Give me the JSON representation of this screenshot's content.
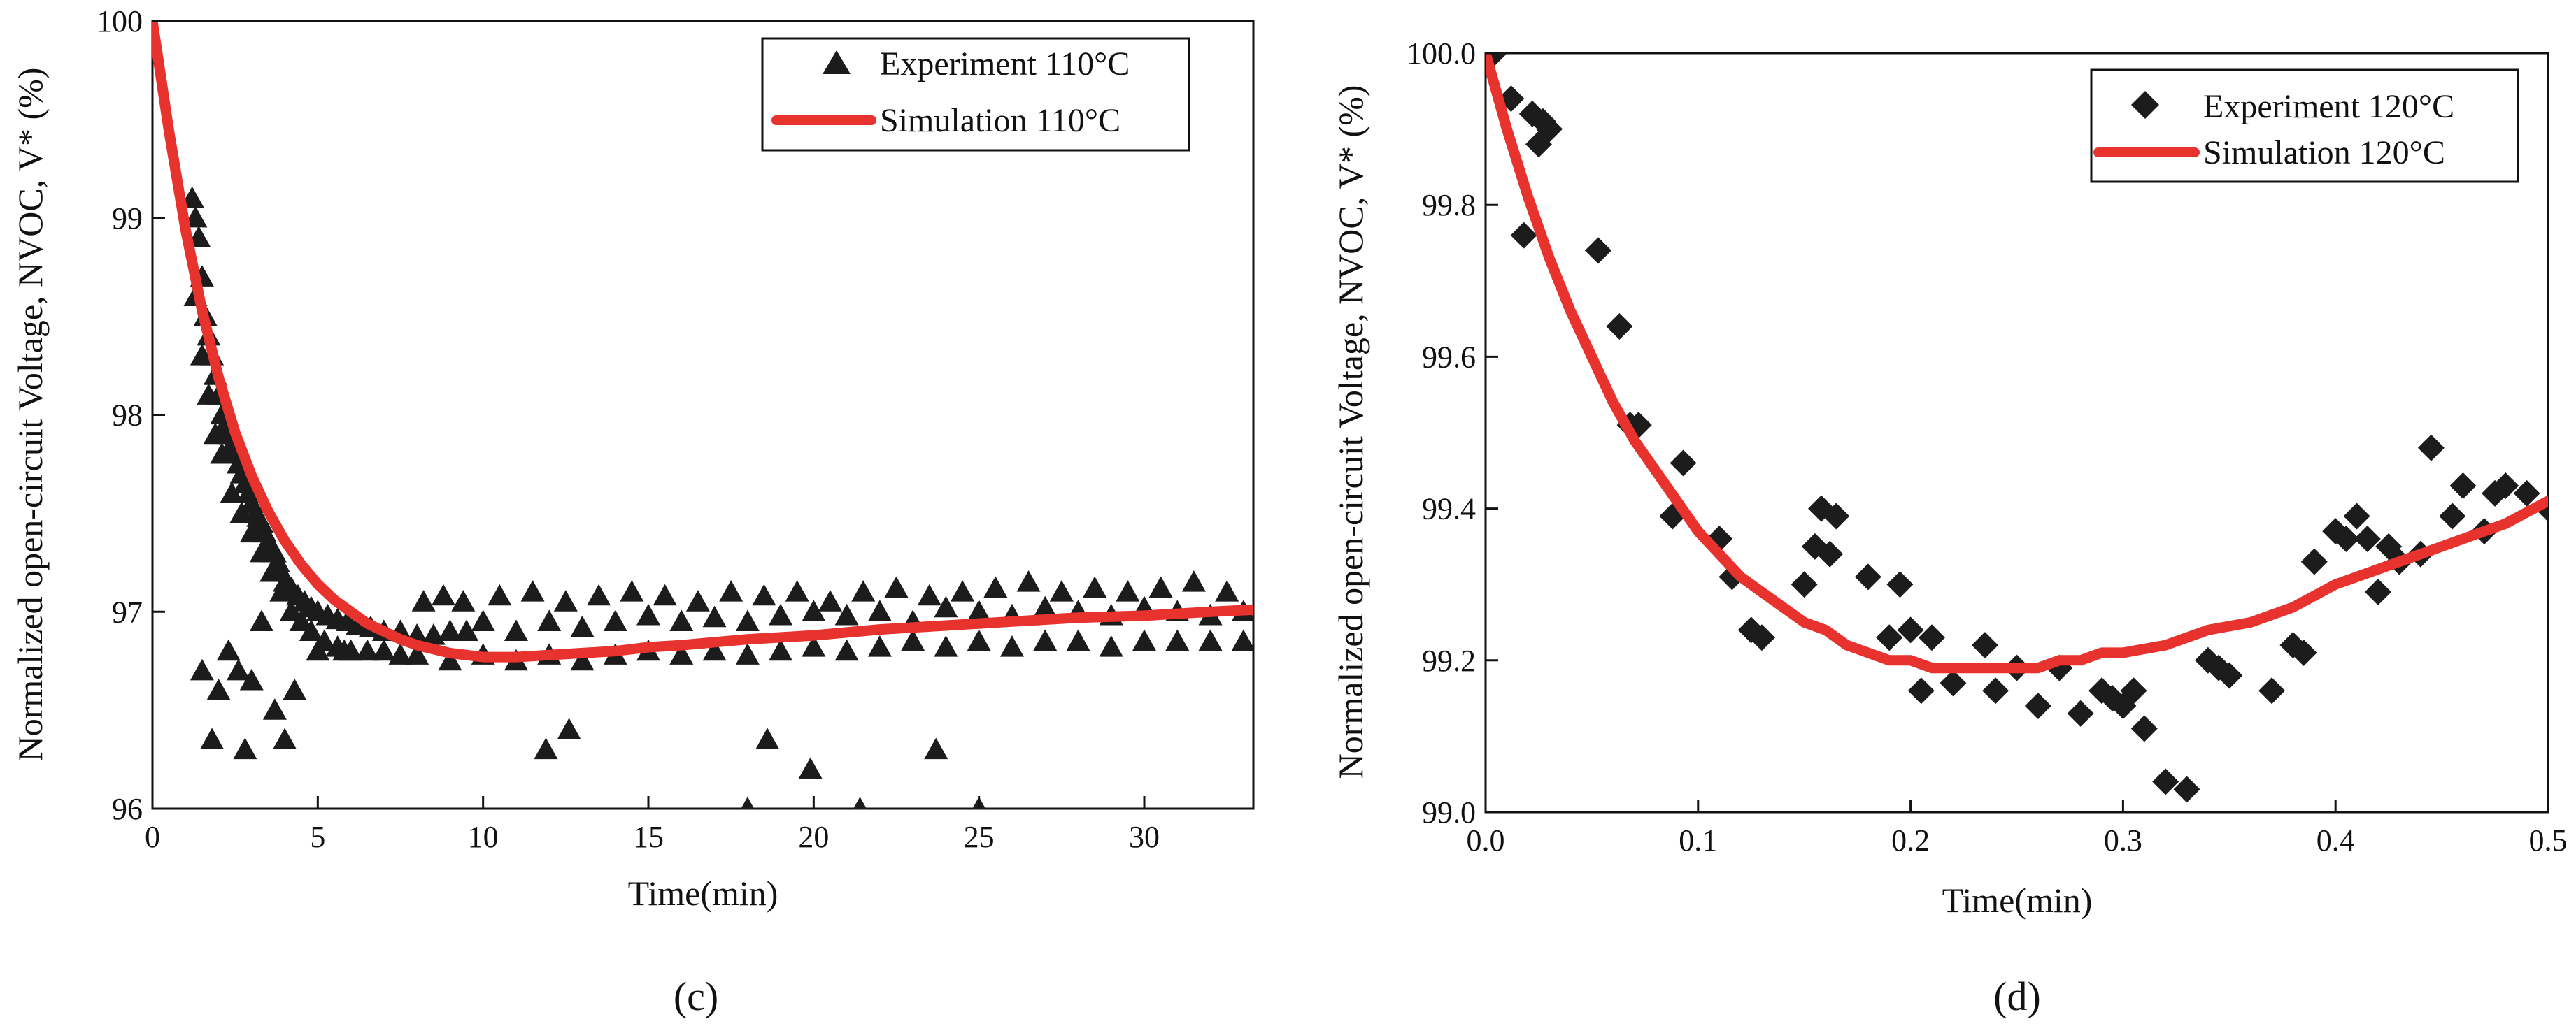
{
  "chart_data": [
    {
      "id": "c",
      "type": "scatter",
      "caption": "(c)",
      "xlabel": "Time(min)",
      "ylabel": "Normalized open-circuit Voltage, NVOC, V* (%)",
      "xlim": [
        0,
        33.3
      ],
      "ylim": [
        96,
        100
      ],
      "xticks": [
        0,
        5,
        10,
        15,
        20,
        25,
        30
      ],
      "yticks": [
        96,
        97,
        98,
        99,
        100
      ],
      "xtick_labels": [
        "0",
        "5",
        "10",
        "15",
        "20",
        "25",
        "30"
      ],
      "ytick_labels": [
        "96",
        "97",
        "98",
        "99",
        "100"
      ],
      "grid": false,
      "legend_position": "top-right",
      "series": [
        {
          "name": "Experiment 110°C",
          "kind": "scatter",
          "marker": "triangle",
          "color": "#1c1c1c",
          "x": [
            1.2,
            1.3,
            1.4,
            1.5,
            1.6,
            1.7,
            1.8,
            1.9,
            2.0,
            2.1,
            2.2,
            2.3,
            2.4,
            2.5,
            2.6,
            2.7,
            2.8,
            2.9,
            3.0,
            3.1,
            3.2,
            3.3,
            3.4,
            3.5,
            3.6,
            3.7,
            3.8,
            3.9,
            4.0,
            4.2,
            4.4,
            4.6,
            4.8,
            5.0,
            5.3,
            5.6,
            5.9,
            6.2,
            6.6,
            7.0,
            7.5,
            8.0,
            8.5,
            9.0,
            9.5,
            10.0,
            11.0,
            12.0,
            13.0,
            14.0,
            15.0,
            16.0,
            17.0,
            18.0,
            19.0,
            20.0,
            21.0,
            22.0,
            23.0,
            24.0,
            25.0,
            26.0,
            27.0,
            28.0,
            29.0,
            30.0,
            31.0,
            32.0,
            33.0,
            1.3,
            1.5,
            1.7,
            1.9,
            2.1,
            2.4,
            2.7,
            3.0,
            3.3,
            3.6,
            3.9,
            4.2,
            4.5,
            4.8,
            5.2,
            5.6,
            6.0,
            6.5,
            7.0,
            7.5,
            8.0,
            9.0,
            10.0,
            11.0,
            12.0,
            13.0,
            14.0,
            15.0,
            16.0,
            17.0,
            18.0,
            19.0,
            20.0,
            21.0,
            22.0,
            23.0,
            24.0,
            25.0,
            26.0,
            27.0,
            28.0,
            29.0,
            30.0,
            31.0,
            32.0,
            33.0,
            8.2,
            8.8,
            9.4,
            10.5,
            11.5,
            12.5,
            13.5,
            14.5,
            15.5,
            16.5,
            17.5,
            18.5,
            19.5,
            20.5,
            21.5,
            22.5,
            23.5,
            24.5,
            25.5,
            26.5,
            27.5,
            28.5,
            29.5,
            30.5,
            31.5,
            32.5,
            1.5,
            1.8,
            2.0,
            2.3,
            2.6,
            2.8,
            3.0,
            3.3,
            3.7,
            4.0,
            4.3,
            5.0,
            5.8,
            11.9,
            12.6,
            18.0,
            18.6,
            19.9,
            21.4,
            23.7,
            25.0
          ],
          "y": [
            99.1,
            99.0,
            98.9,
            98.7,
            98.5,
            98.4,
            98.3,
            98.2,
            98.1,
            98.0,
            97.95,
            97.9,
            97.85,
            97.8,
            97.75,
            97.7,
            97.65,
            97.6,
            97.55,
            97.5,
            97.48,
            97.45,
            97.4,
            97.35,
            97.3,
            97.3,
            97.25,
            97.2,
            97.15,
            97.12,
            97.08,
            97.05,
            97.02,
            97.0,
            96.98,
            96.96,
            96.95,
            96.93,
            96.92,
            96.9,
            96.9,
            96.88,
            96.88,
            96.9,
            96.9,
            96.95,
            96.9,
            96.95,
            96.92,
            96.95,
            96.98,
            96.95,
            96.97,
            96.95,
            96.98,
            97.0,
            96.98,
            97.0,
            96.95,
            97.02,
            97.0,
            96.98,
            97.02,
            97.0,
            96.98,
            97.02,
            97.0,
            96.98,
            97.0,
            98.6,
            98.3,
            98.1,
            97.9,
            97.8,
            97.6,
            97.5,
            97.4,
            97.3,
            97.2,
            97.1,
            97.0,
            96.95,
            96.9,
            96.85,
            96.82,
            96.8,
            96.8,
            96.8,
            96.78,
            96.78,
            96.75,
            96.78,
            96.75,
            96.78,
            96.75,
            96.78,
            96.8,
            96.78,
            96.8,
            96.78,
            96.8,
            96.82,
            96.8,
            96.82,
            96.85,
            96.82,
            96.85,
            96.82,
            96.85,
            96.85,
            96.82,
            96.85,
            96.85,
            96.85,
            96.85,
            97.05,
            97.08,
            97.05,
            97.08,
            97.1,
            97.05,
            97.08,
            97.1,
            97.08,
            97.05,
            97.1,
            97.08,
            97.1,
            97.05,
            97.1,
            97.12,
            97.08,
            97.1,
            97.12,
            97.15,
            97.1,
            97.12,
            97.1,
            97.12,
            97.15,
            97.1,
            96.7,
            96.35,
            96.6,
            96.8,
            96.7,
            96.3,
            96.65,
            96.95,
            96.5,
            96.35,
            96.6,
            96.8,
            96.8,
            96.3,
            96.4,
            96.0,
            96.35,
            96.2,
            96.0,
            96.3,
            96.0
          ]
        },
        {
          "name": "Simulation 110°C",
          "kind": "line",
          "color": "#e8322e",
          "x": [
            0,
            0.5,
            1,
            1.5,
            2,
            2.5,
            3,
            3.5,
            4,
            4.5,
            5,
            5.5,
            6,
            6.5,
            7,
            7.5,
            8,
            9,
            10,
            11,
            12,
            13,
            14,
            15,
            16,
            18,
            20,
            22,
            24,
            26,
            28,
            30,
            32,
            33.3
          ],
          "y": [
            100,
            99.44,
            98.94,
            98.53,
            98.19,
            97.91,
            97.69,
            97.51,
            97.36,
            97.24,
            97.14,
            97.06,
            97.0,
            96.94,
            96.9,
            96.86,
            96.83,
            96.79,
            96.77,
            96.77,
            96.78,
            96.79,
            96.8,
            96.82,
            96.83,
            96.86,
            96.88,
            96.91,
            96.93,
            96.95,
            96.97,
            96.98,
            97.0,
            97.01
          ]
        }
      ]
    },
    {
      "id": "d",
      "type": "scatter",
      "caption": "(d)",
      "xlabel": "Time(min)",
      "ylabel": "Normalized open-circuit Voltage, NVOC, V* (%)",
      "xlim": [
        0,
        0.5
      ],
      "ylim": [
        99.0,
        100.0
      ],
      "xticks": [
        0.0,
        0.1,
        0.2,
        0.3,
        0.4,
        0.5
      ],
      "yticks": [
        99.0,
        99.2,
        99.4,
        99.6,
        99.8,
        100.0
      ],
      "xtick_labels": [
        "0.0",
        "0.1",
        "0.2",
        "0.3",
        "0.4",
        "0.5"
      ],
      "ytick_labels": [
        "99.0",
        "99.2",
        "99.4",
        "99.6",
        "99.8",
        "100.0"
      ],
      "grid": false,
      "legend_position": "top-right",
      "series": [
        {
          "name": "Experiment 120°C",
          "kind": "scatter",
          "marker": "diamond",
          "color": "#1c1c1c",
          "x": [
            0.004,
            0.012,
            0.018,
            0.022,
            0.025,
            0.027,
            0.03,
            0.053,
            0.063,
            0.068,
            0.072,
            0.088,
            0.093,
            0.11,
            0.116,
            0.125,
            0.13,
            0.15,
            0.155,
            0.158,
            0.162,
            0.165,
            0.18,
            0.19,
            0.195,
            0.2,
            0.205,
            0.21,
            0.22,
            0.235,
            0.24,
            0.25,
            0.26,
            0.27,
            0.28,
            0.29,
            0.295,
            0.3,
            0.305,
            0.31,
            0.32,
            0.33,
            0.34,
            0.345,
            0.35,
            0.37,
            0.38,
            0.385,
            0.39,
            0.4,
            0.405,
            0.41,
            0.415,
            0.42,
            0.425,
            0.43,
            0.44,
            0.445,
            0.455,
            0.46,
            0.47,
            0.475,
            0.48,
            0.49,
            0.5
          ],
          "y": [
            100.0,
            99.94,
            99.76,
            99.92,
            99.88,
            99.91,
            99.9,
            99.74,
            99.64,
            99.51,
            99.51,
            99.39,
            99.46,
            99.36,
            99.31,
            99.24,
            99.23,
            99.3,
            99.35,
            99.4,
            99.34,
            99.39,
            99.31,
            99.23,
            99.3,
            99.24,
            99.16,
            99.23,
            99.17,
            99.22,
            99.16,
            99.19,
            99.14,
            99.19,
            99.13,
            99.16,
            99.15,
            99.14,
            99.16,
            99.11,
            99.04,
            99.03,
            99.2,
            99.19,
            99.18,
            99.16,
            99.22,
            99.21,
            99.33,
            99.37,
            99.36,
            99.39,
            99.36,
            99.29,
            99.35,
            99.33,
            99.34,
            99.48,
            99.39,
            99.43,
            99.37,
            99.42,
            99.43,
            99.42,
            99.4
          ]
        },
        {
          "name": "Simulation 120°C",
          "kind": "line",
          "color": "#e8322e",
          "x": [
            0,
            0.01,
            0.02,
            0.03,
            0.04,
            0.05,
            0.06,
            0.07,
            0.08,
            0.09,
            0.1,
            0.11,
            0.12,
            0.13,
            0.14,
            0.15,
            0.16,
            0.17,
            0.18,
            0.19,
            0.2,
            0.21,
            0.22,
            0.23,
            0.24,
            0.25,
            0.26,
            0.27,
            0.28,
            0.29,
            0.3,
            0.32,
            0.34,
            0.36,
            0.38,
            0.4,
            0.42,
            0.44,
            0.46,
            0.48,
            0.5
          ],
          "y": [
            100.0,
            99.9,
            99.81,
            99.73,
            99.66,
            99.6,
            99.54,
            99.49,
            99.45,
            99.41,
            99.37,
            99.34,
            99.31,
            99.29,
            99.27,
            99.25,
            99.24,
            99.22,
            99.21,
            99.2,
            99.2,
            99.19,
            99.19,
            99.19,
            99.19,
            99.19,
            99.19,
            99.2,
            99.2,
            99.21,
            99.21,
            99.22,
            99.24,
            99.25,
            99.27,
            99.3,
            99.32,
            99.34,
            99.36,
            99.38,
            99.41
          ]
        }
      ]
    }
  ]
}
